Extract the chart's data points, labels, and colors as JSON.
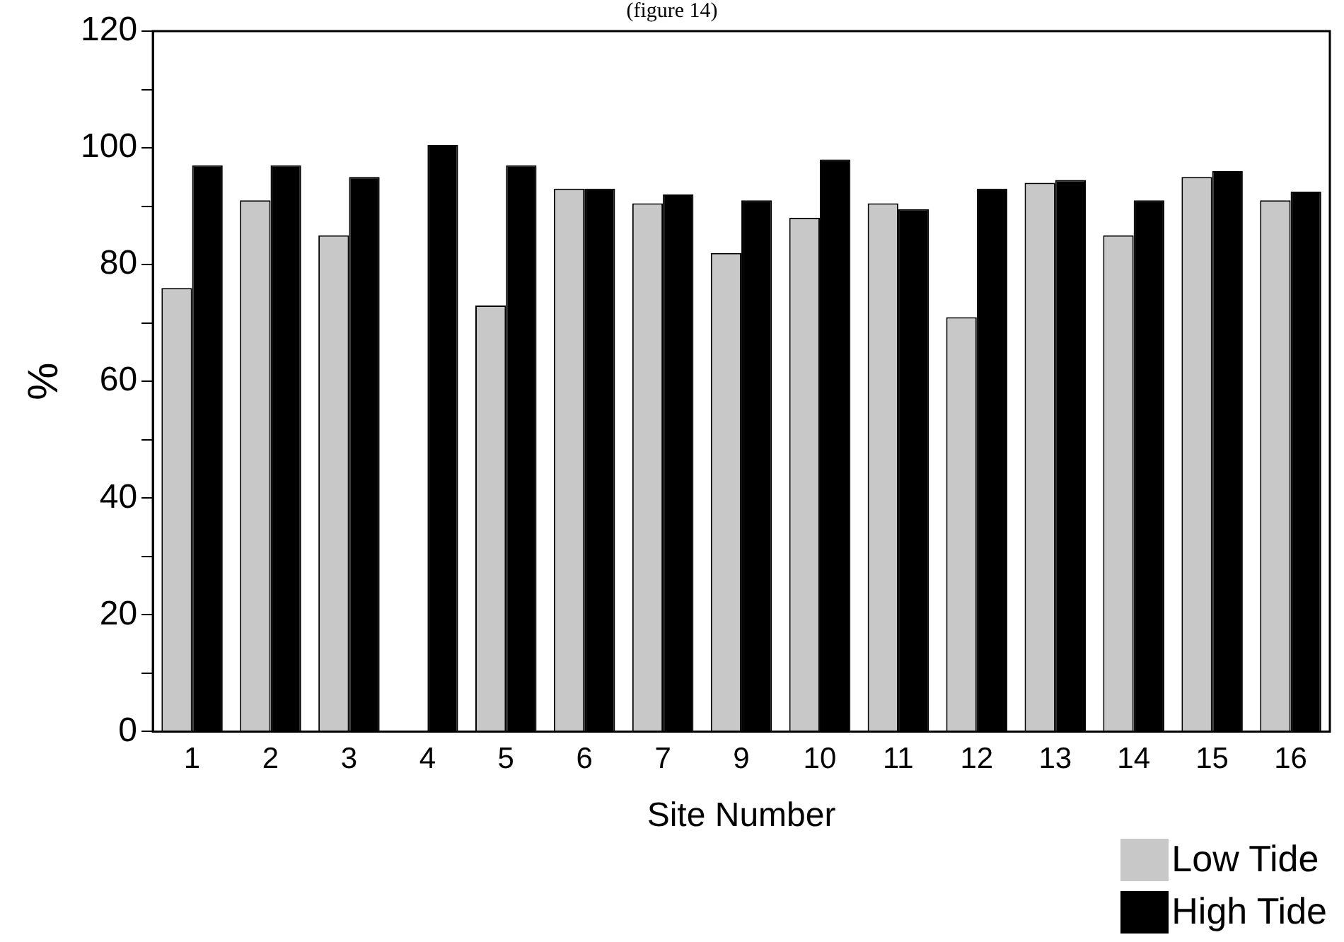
{
  "chart_data": {
    "type": "bar",
    "title": "(figure 14)",
    "xlabel": "Site Number",
    "ylabel": "%",
    "categories": [
      "1",
      "2",
      "3",
      "4",
      "5",
      "6",
      "7",
      "9",
      "10",
      "11",
      "12",
      "13",
      "14",
      "15",
      "16"
    ],
    "series": [
      {
        "name": "Low Tide",
        "color": "#c8c8c8",
        "values": [
          76,
          91,
          85,
          0,
          73,
          93,
          90.5,
          82,
          88,
          90.5,
          71,
          94,
          85,
          95,
          91
        ]
      },
      {
        "name": "High Tide",
        "color": "#000000",
        "values": [
          97,
          97,
          95,
          100.5,
          97,
          93,
          92,
          91,
          98,
          89.5,
          93,
          94.5,
          91,
          96,
          92.5
        ]
      }
    ],
    "ylim": [
      0,
      120
    ],
    "yticks": [
      0,
      {
        "value": 10,
        "label": null
      },
      20,
      {
        "value": 30,
        "label": null
      },
      40,
      {
        "value": 50,
        "label": null
      },
      60,
      {
        "value": 70,
        "label": null
      },
      80,
      {
        "value": 90,
        "label": null
      },
      100,
      {
        "value": 110,
        "label": null
      },
      120
    ],
    "grid": false,
    "legend": "bottom right"
  }
}
